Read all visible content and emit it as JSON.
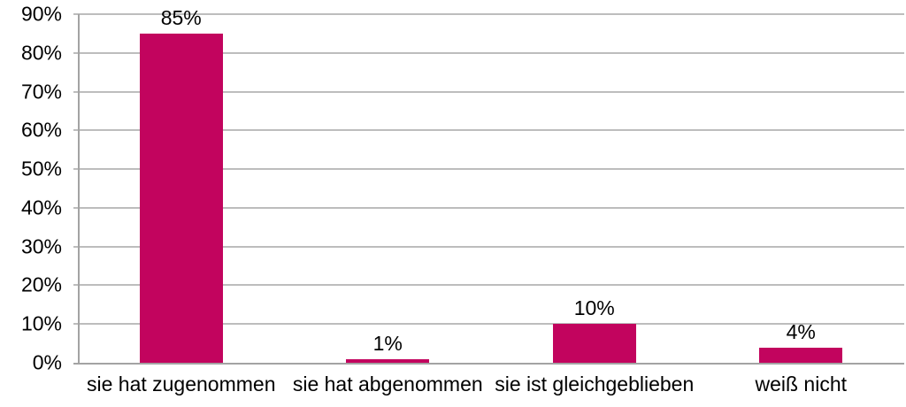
{
  "chart_data": {
    "type": "bar",
    "title": "",
    "categories": [
      "sie hat zugenommen",
      "sie hat abgenommen",
      "sie ist gleichgeblieben",
      "weiß nicht"
    ],
    "values": [
      85,
      1,
      10,
      4
    ],
    "data_labels": [
      "85%",
      "1%",
      "10%",
      "4%"
    ],
    "ylim": [
      0,
      90
    ],
    "ytick_step": 10,
    "ytick_labels": [
      "0%",
      "10%",
      "20%",
      "30%",
      "40%",
      "50%",
      "60%",
      "70%",
      "80%",
      "90%"
    ],
    "grid": true,
    "legend": false,
    "colors": {
      "bar": "#C2045E",
      "gridline": "#BDBDBD",
      "axis": "#A3A3A3",
      "text": "#000000",
      "background": "#FFFFFF"
    }
  }
}
